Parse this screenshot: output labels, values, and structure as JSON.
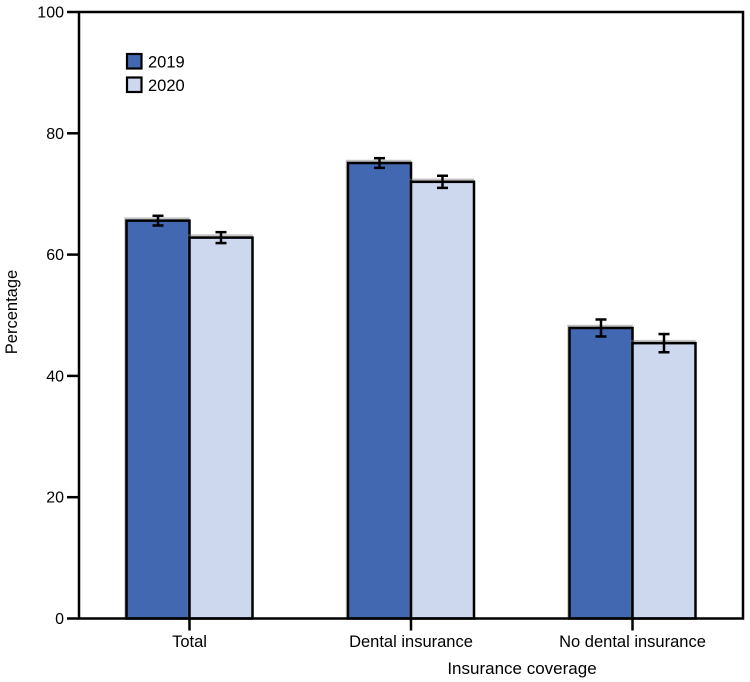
{
  "chart_data": {
    "type": "bar",
    "title": "",
    "categories": [
      "Total",
      "Dental insurance",
      "No dental insurance"
    ],
    "series": [
      {
        "name": "2019",
        "color": "#4268b2",
        "values": [
          65.6,
          75.1,
          47.9
        ],
        "errors": [
          0.8,
          0.8,
          1.4
        ]
      },
      {
        "name": "2020",
        "color": "#cdd7ed",
        "values": [
          62.8,
          72.0,
          45.4
        ],
        "errors": [
          0.9,
          1.0,
          1.5
        ]
      }
    ],
    "xlabel": "Insurance coverage",
    "ylabel": "Percentage",
    "ylim": [
      0,
      100
    ],
    "yticks": [
      0,
      20,
      40,
      60,
      80,
      100
    ],
    "grid": false,
    "legend_position": "top-left-inside",
    "bar_outline_color": "#000000",
    "error_bars": true
  }
}
